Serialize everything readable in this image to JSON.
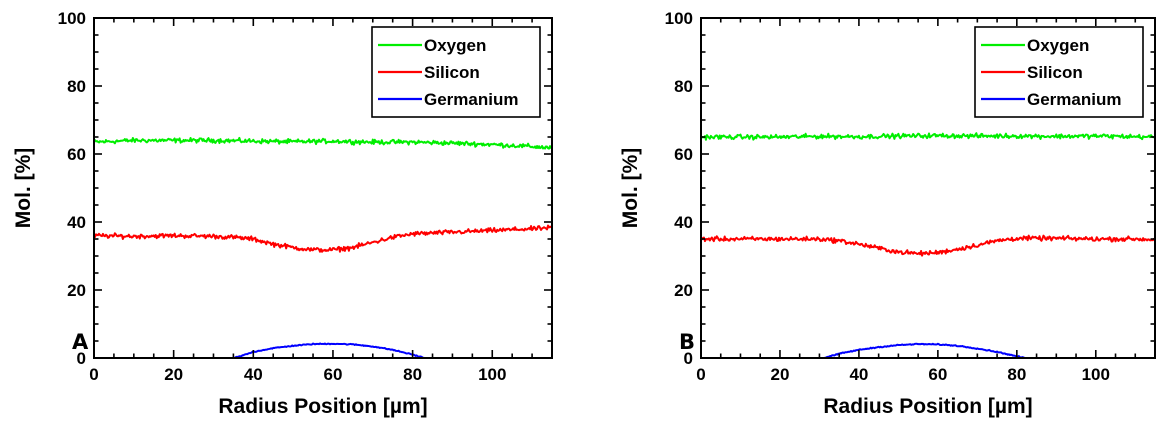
{
  "chart_data": [
    {
      "type": "line",
      "panel_label": "A",
      "xlabel": "Radius Position [µm]",
      "ylabel": "Mol. [%]",
      "xlim": [
        0,
        115
      ],
      "ylim": [
        0,
        100
      ],
      "xticks": [
        0,
        20,
        40,
        60,
        80,
        100
      ],
      "yticks": [
        0,
        20,
        40,
        60,
        80,
        100
      ],
      "legend_position": "top-right",
      "grid": false,
      "series": [
        {
          "name": "Oxygen",
          "color": "#00ee00",
          "points": [
            [
              0,
              63.5
            ],
            [
              10,
              64
            ],
            [
              20,
              64
            ],
            [
              30,
              64
            ],
            [
              40,
              63.8
            ],
            [
              50,
              63.6
            ],
            [
              60,
              63.8
            ],
            [
              70,
              63.5
            ],
            [
              80,
              63.5
            ],
            [
              90,
              63.2
            ],
            [
              100,
              62.8
            ],
            [
              110,
              62.2
            ],
            [
              115,
              61.8
            ]
          ]
        },
        {
          "name": "Silicon",
          "color": "#ff0000",
          "points": [
            [
              0,
              36
            ],
            [
              10,
              35.8
            ],
            [
              20,
              36
            ],
            [
              30,
              35.8
            ],
            [
              35,
              35.5
            ],
            [
              40,
              35
            ],
            [
              45,
              33.5
            ],
            [
              50,
              32.5
            ],
            [
              55,
              31.8
            ],
            [
              60,
              31.8
            ],
            [
              65,
              32.5
            ],
            [
              70,
              34
            ],
            [
              75,
              35.5
            ],
            [
              80,
              36.5
            ],
            [
              90,
              37
            ],
            [
              100,
              37.5
            ],
            [
              110,
              38
            ],
            [
              115,
              38.3
            ]
          ]
        },
        {
          "name": "Germanium",
          "color": "#0000ff",
          "points": [
            [
              0,
              0
            ],
            [
              35,
              0
            ],
            [
              37,
              0.6
            ],
            [
              40,
              1.8
            ],
            [
              45,
              2.9
            ],
            [
              50,
              3.6
            ],
            [
              55,
              4.1
            ],
            [
              60,
              4.2
            ],
            [
              65,
              4
            ],
            [
              70,
              3.4
            ],
            [
              75,
              2.4
            ],
            [
              80,
              1
            ],
            [
              83,
              0
            ],
            [
              115,
              0
            ]
          ]
        }
      ]
    },
    {
      "type": "line",
      "panel_label": "B",
      "xlabel": "Radius Position [µm]",
      "ylabel": "Mol. [%]",
      "xlim": [
        0,
        115
      ],
      "ylim": [
        0,
        100
      ],
      "xticks": [
        0,
        20,
        40,
        60,
        80,
        100
      ],
      "yticks": [
        0,
        20,
        40,
        60,
        80,
        100
      ],
      "legend_position": "top-right",
      "grid": false,
      "series": [
        {
          "name": "Oxygen",
          "color": "#00ee00",
          "points": [
            [
              0,
              65
            ],
            [
              10,
              65
            ],
            [
              20,
              65
            ],
            [
              30,
              65.2
            ],
            [
              40,
              65.1
            ],
            [
              50,
              65.3
            ],
            [
              60,
              65.4
            ],
            [
              70,
              65.3
            ],
            [
              80,
              65.3
            ],
            [
              90,
              65.2
            ],
            [
              100,
              65.3
            ],
            [
              110,
              65.1
            ],
            [
              115,
              65
            ]
          ]
        },
        {
          "name": "Silicon",
          "color": "#ff0000",
          "points": [
            [
              0,
              35
            ],
            [
              10,
              35
            ],
            [
              20,
              35
            ],
            [
              30,
              35
            ],
            [
              35,
              34.5
            ],
            [
              40,
              33.5
            ],
            [
              45,
              32.3
            ],
            [
              50,
              31.2
            ],
            [
              55,
              30.7
            ],
            [
              60,
              31
            ],
            [
              65,
              32
            ],
            [
              70,
              33.2
            ],
            [
              75,
              34.5
            ],
            [
              80,
              35.2
            ],
            [
              90,
              35.2
            ],
            [
              100,
              35
            ],
            [
              110,
              35
            ],
            [
              115,
              34.8
            ]
          ]
        },
        {
          "name": "Germanium",
          "color": "#0000ff",
          "points": [
            [
              0,
              0
            ],
            [
              31,
              0
            ],
            [
              33,
              0.6
            ],
            [
              36,
              1.5
            ],
            [
              40,
              2.4
            ],
            [
              45,
              3.2
            ],
            [
              50,
              3.8
            ],
            [
              55,
              4.1
            ],
            [
              60,
              4
            ],
            [
              65,
              3.6
            ],
            [
              70,
              2.8
            ],
            [
              75,
              1.8
            ],
            [
              80,
              0.5
            ],
            [
              82,
              0
            ],
            [
              115,
              0
            ]
          ]
        }
      ]
    }
  ]
}
